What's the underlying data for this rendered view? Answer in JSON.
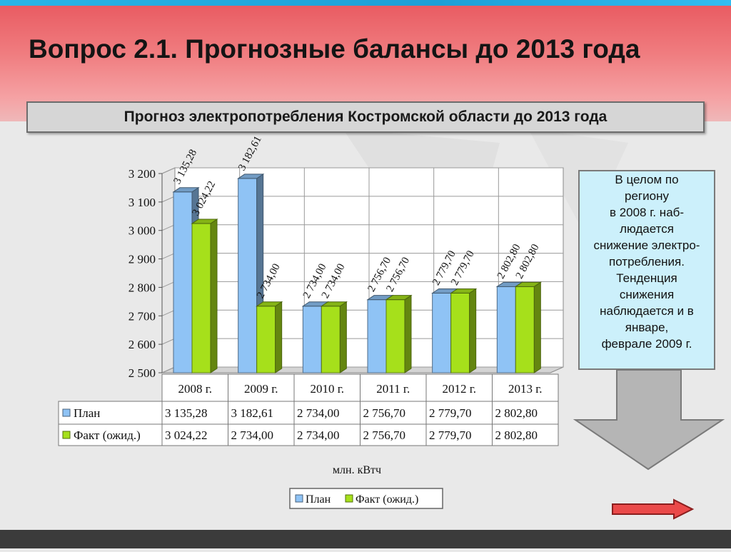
{
  "header": {
    "title": "Вопрос 2.1.  Прогнозные балансы до 2013 года",
    "subtitle": "Прогноз электропотребления Костромской области до 2013 года"
  },
  "note": {
    "lines": [
      "В целом по",
      "региону",
      "в 2008 г. наб-",
      "людается",
      "снижение электро-",
      "потребления.",
      "Тенденция",
      "снижения",
      "наблюдается и в",
      "январе,",
      "феврале 2009 г."
    ]
  },
  "chart_data": {
    "type": "bar",
    "categories": [
      "2008 г.",
      "2009 г.",
      "2010 г.",
      "2011 г.",
      "2012 г.",
      "2013 г."
    ],
    "series": [
      {
        "name": "План",
        "values": [
          3135.28,
          3182.61,
          2734.0,
          2756.7,
          2779.7,
          2802.8
        ],
        "labels": [
          "3 135,28",
          "3 182,61",
          "2 734,00",
          "2 756,70",
          "2 779,70",
          "2 802,80"
        ],
        "color": "#8fc3f5"
      },
      {
        "name": "Факт (ожид.)",
        "values": [
          3024.22,
          2734.0,
          2734.0,
          2756.7,
          2779.7,
          2802.8
        ],
        "labels": [
          "3 024,22",
          "2 734,00",
          "2 734,00",
          "2 756,70",
          "2 779,70",
          "2 802,80"
        ],
        "color": "#a6e01b"
      }
    ],
    "ylim": [
      2500,
      3200
    ],
    "yticks": [
      2500,
      2600,
      2700,
      2800,
      2900,
      3000,
      3100,
      3200
    ],
    "ytick_labels": [
      "2 500",
      "2 600",
      "2 700",
      "2 800",
      "2 900",
      "3 000",
      "3 100",
      "3 200"
    ],
    "xlabel": "млн. кВтч",
    "legend": [
      "План",
      "Факт (ожид.)"
    ],
    "legend_position": "bottom",
    "grid": true
  },
  "colors": {
    "plan": "#8fc3f5",
    "fact": "#a6e01b",
    "arrow": "#e74444",
    "note_bg": "#ccf0fb"
  }
}
